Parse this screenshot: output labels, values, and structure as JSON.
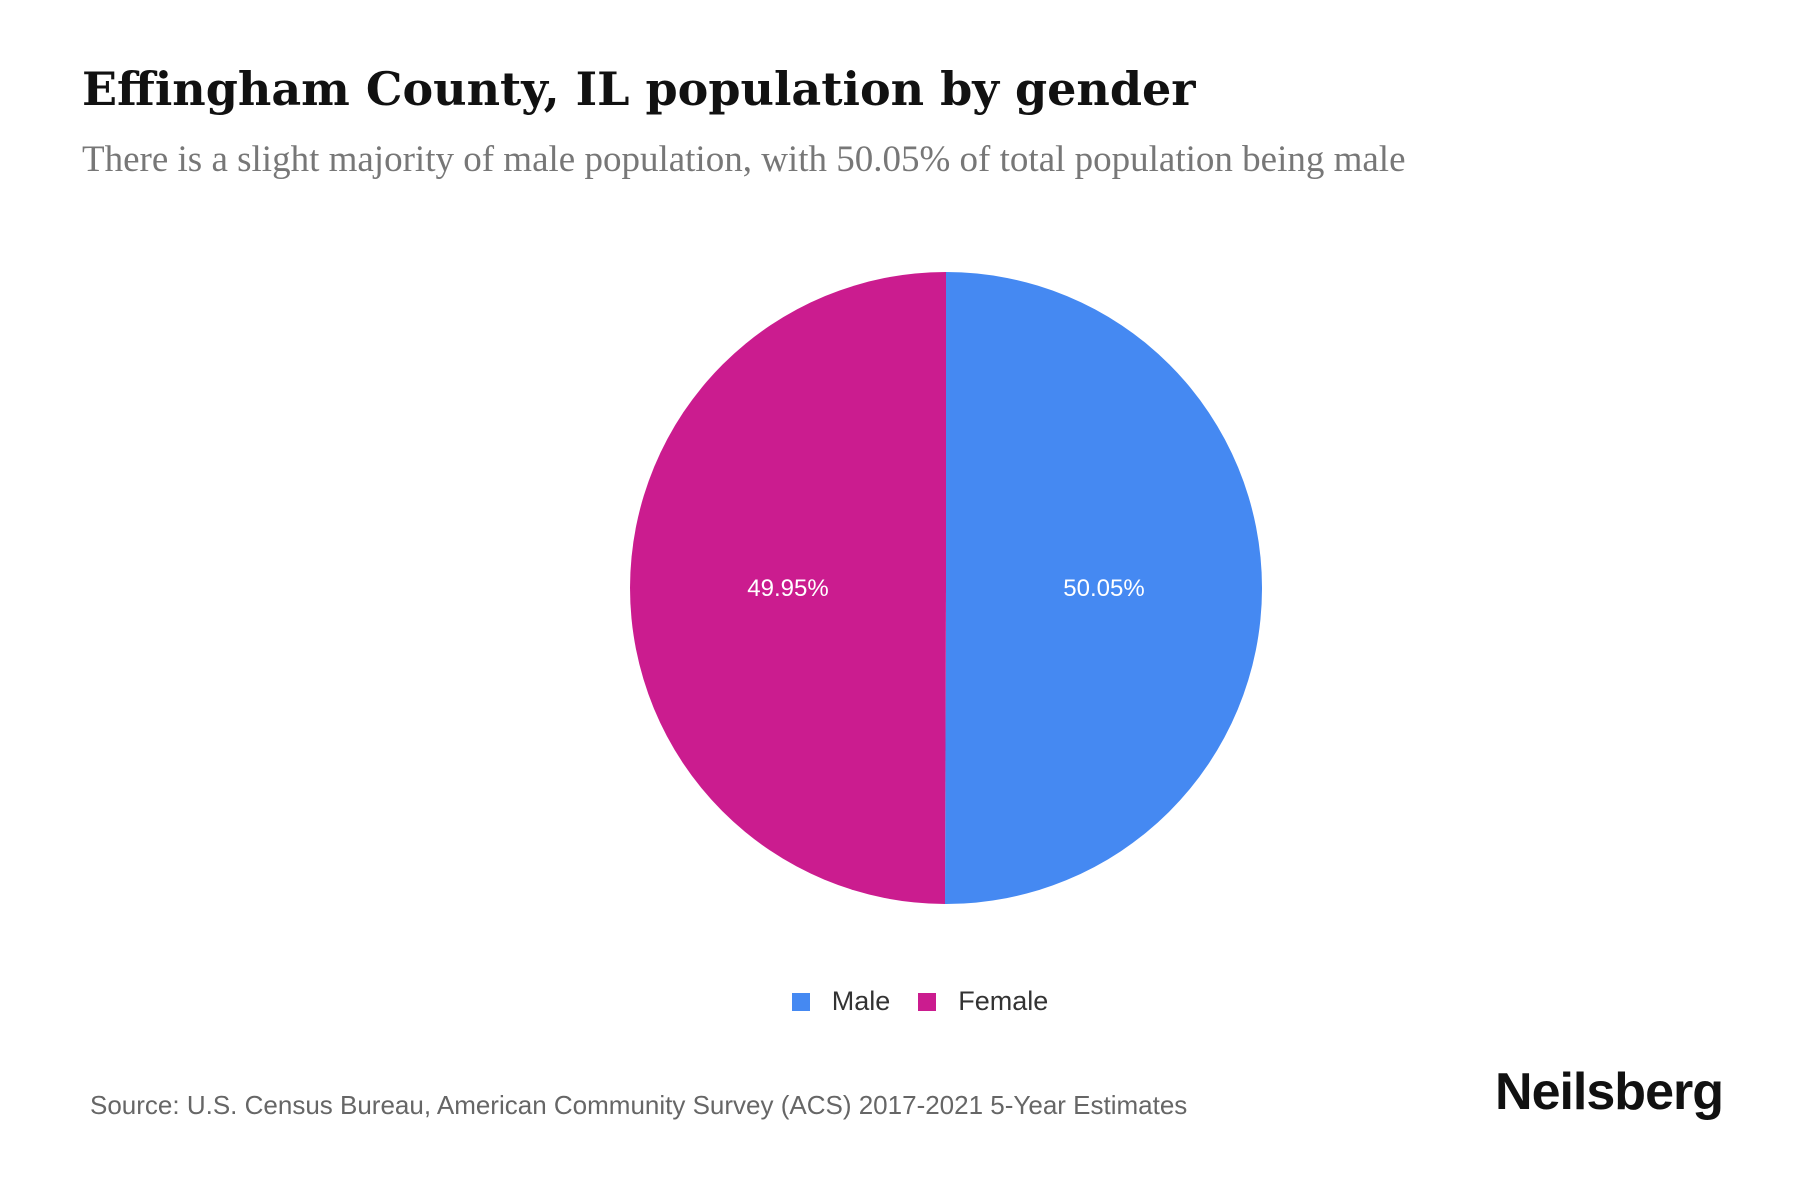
{
  "chart_data": {
    "type": "pie",
    "title": "Effingham County, IL population by gender",
    "subtitle": "There is a slight majority of male population, with 50.05% of total population being male",
    "slices": [
      {
        "name": "Male",
        "value": 50.05,
        "label": "50.05%",
        "color": "#4589f2"
      },
      {
        "name": "Female",
        "value": 49.95,
        "label": "49.95%",
        "color": "#cb1c8f"
      }
    ],
    "legend": {
      "placement": "bottom",
      "items": [
        {
          "name": "Male",
          "color": "#4589f2"
        },
        {
          "name": "Female",
          "color": "#cb1c8f"
        }
      ]
    }
  },
  "source": "Source: U.S. Census Bureau, American Community Survey (ACS) 2017-2021 5-Year Estimates",
  "brand": "Neilsberg"
}
